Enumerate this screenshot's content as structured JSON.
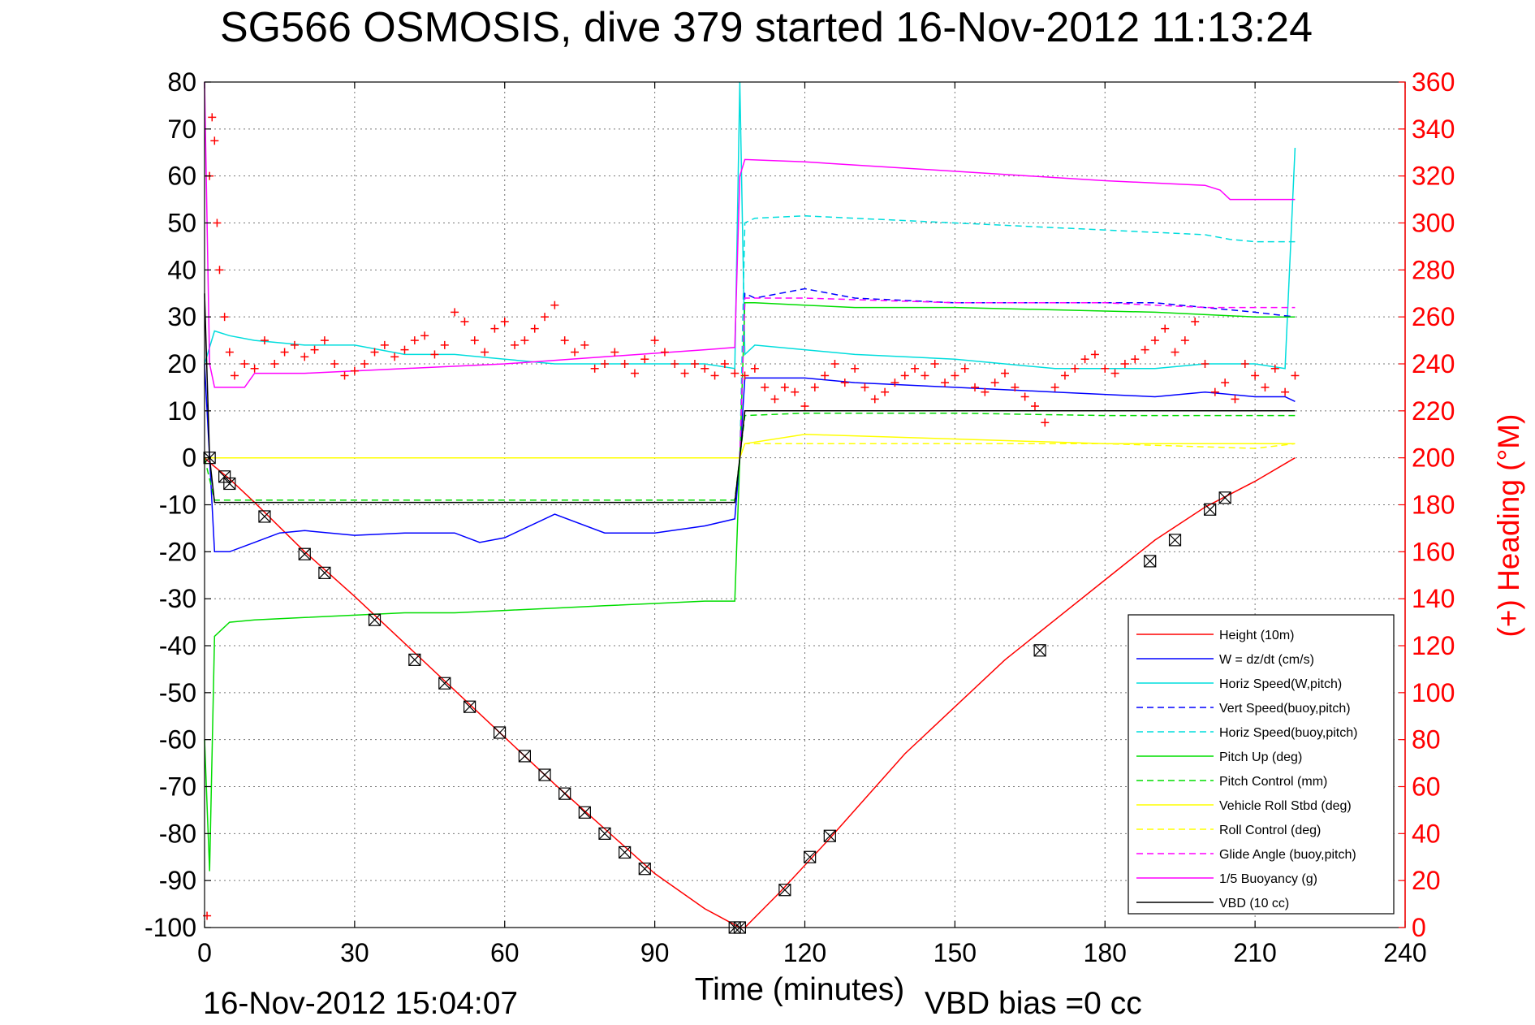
{
  "chart_data": {
    "type": "line",
    "title": "SG566 OSMOSIS, dive 379 started 16-Nov-2012 11:13:24",
    "xlabel": "Time (minutes)",
    "ylabel_right": "(+) Heading (°M)",
    "bottom_left_text": "16-Nov-2012 15:04:07",
    "bottom_text": "VBD bias =0 cc",
    "xlim": [
      0,
      240
    ],
    "ylim_left": [
      -100,
      80
    ],
    "ylim_right": [
      0,
      360
    ],
    "grid": true,
    "legend_position": "bottom-right",
    "x_ticks": [
      "0",
      "30",
      "60",
      "90",
      "120",
      "150",
      "180",
      "210",
      "240"
    ],
    "y_left_ticks": [
      "-100",
      "-90",
      "-80",
      "-70",
      "-60",
      "-50",
      "-40",
      "-30",
      "-20",
      "-10",
      "0",
      "10",
      "20",
      "30",
      "40",
      "50",
      "60",
      "70",
      "80"
    ],
    "y_right_ticks": [
      "0",
      "20",
      "40",
      "60",
      "80",
      "100",
      "120",
      "140",
      "160",
      "180",
      "200",
      "220",
      "240",
      "260",
      "280",
      "300",
      "320",
      "340",
      "360"
    ],
    "series": [
      {
        "name": "Height (10m)",
        "color": "#ff0000",
        "style": "solid",
        "x": [
          0,
          1,
          5,
          10,
          20,
          30,
          40,
          50,
          60,
          70,
          80,
          90,
          100,
          107,
          108,
          115,
          125,
          140,
          160,
          180,
          190,
          200,
          210,
          218
        ],
        "y": [
          0,
          -1,
          -4.5,
          -9.5,
          -20,
          -29.5,
          -39.5,
          -49.5,
          -59.5,
          -69.5,
          -79,
          -88.5,
          -96,
          -100,
          -100,
          -92.5,
          -81,
          -63,
          -43,
          -26,
          -17.5,
          -10.5,
          -5,
          0
        ]
      },
      {
        "name": "W = dz/dt (cm/s)",
        "color": "#0000ff",
        "style": "solid",
        "x": [
          0,
          1,
          2,
          5,
          10,
          15,
          20,
          30,
          40,
          50,
          55,
          60,
          70,
          80,
          90,
          100,
          106,
          107,
          108,
          110,
          120,
          130,
          150,
          170,
          190,
          200,
          210,
          216,
          218
        ],
        "y": [
          20,
          0,
          -20,
          -20,
          -18,
          -16,
          -15.5,
          -16.5,
          -16,
          -16,
          -18,
          -17,
          -12,
          -16,
          -16,
          -14.5,
          -13,
          0,
          17,
          17,
          17,
          16,
          15,
          14,
          13,
          14,
          13,
          13,
          12
        ]
      },
      {
        "name": "Horiz Speed(W,pitch)",
        "color": "#00dddd",
        "style": "solid",
        "x": [
          0,
          2,
          5,
          10,
          20,
          30,
          40,
          50,
          60,
          70,
          80,
          90,
          100,
          106,
          107,
          108,
          110,
          120,
          130,
          150,
          170,
          190,
          200,
          210,
          216,
          218
        ],
        "y": [
          20,
          27,
          26,
          25,
          24,
          24,
          22,
          22,
          21,
          20,
          20,
          20,
          20,
          19,
          80,
          22,
          24,
          23,
          22,
          21,
          19,
          19,
          20,
          20,
          19,
          66
        ]
      },
      {
        "name": "Vert Speed(buoy,pitch)",
        "color": "#0000ff",
        "style": "dashed",
        "x": [
          107,
          108,
          110,
          120,
          130,
          150,
          170,
          190,
          210,
          218
        ],
        "y": [
          0,
          35,
          34,
          36,
          34,
          33,
          33,
          33,
          31,
          30
        ]
      },
      {
        "name": "Horiz Speed(buoy,pitch)",
        "color": "#00dddd",
        "style": "dashed",
        "x": [
          107,
          108,
          110,
          120,
          130,
          150,
          170,
          190,
          200,
          205,
          210,
          218
        ],
        "y": [
          0,
          50,
          51,
          51.5,
          51,
          50,
          49,
          48,
          47.5,
          46.5,
          46,
          46
        ]
      },
      {
        "name": "Pitch Up (deg)",
        "color": "#00dd00",
        "style": "solid",
        "x": [
          0,
          1,
          2,
          5,
          10,
          20,
          30,
          40,
          50,
          60,
          70,
          80,
          90,
          100,
          106,
          107,
          108,
          110,
          120,
          130,
          150,
          170,
          190,
          210,
          218
        ],
        "y": [
          -60,
          -88,
          -38,
          -35,
          -34.5,
          -34,
          -33.5,
          -33,
          -33,
          -32.5,
          -32,
          -31.5,
          -31,
          -30.5,
          -30.5,
          0,
          33,
          33,
          32.5,
          32,
          32,
          31.5,
          31,
          30,
          30
        ]
      },
      {
        "name": "Pitch Control (mm)",
        "color": "#00dd00",
        "style": "dashed",
        "x": [
          0,
          2,
          10,
          40,
          80,
          106,
          107,
          108,
          120,
          150,
          180,
          218
        ],
        "y": [
          0,
          -9,
          -9,
          -9,
          -9,
          -9,
          0,
          9,
          9.5,
          9.5,
          9,
          9
        ]
      },
      {
        "name": "Vehicle Roll Stbd (deg)",
        "color": "#ffff00",
        "style": "solid",
        "x": [
          0,
          2,
          10,
          30,
          60,
          90,
          106,
          107,
          108,
          120,
          150,
          180,
          210,
          218
        ],
        "y": [
          0,
          0,
          0,
          0,
          0,
          0,
          0,
          0,
          3,
          5,
          4,
          3,
          3,
          3
        ]
      },
      {
        "name": "Roll Control (deg)",
        "color": "#ffff00",
        "style": "dashed",
        "x": [
          0,
          2,
          10,
          30,
          60,
          90,
          106,
          107,
          108,
          120,
          150,
          180,
          210,
          218
        ],
        "y": [
          0,
          0,
          0,
          0,
          0,
          0,
          0,
          0,
          3,
          3,
          3,
          3,
          2,
          3
        ]
      },
      {
        "name": "Glide Angle (buoy,pitch)",
        "color": "#ff00ff",
        "style": "dashed",
        "x": [
          107,
          108,
          120,
          150,
          180,
          200,
          210,
          218
        ],
        "y": [
          0,
          34,
          34,
          33,
          33,
          32,
          32,
          32
        ]
      },
      {
        "name": "1/5 Buoyancy (g)",
        "color": "#ff00ff",
        "style": "solid",
        "x": [
          0,
          1,
          2,
          8,
          10,
          20,
          40,
          60,
          80,
          100,
          106,
          107,
          108,
          120,
          150,
          180,
          200,
          203,
          205,
          210,
          218
        ],
        "y": [
          80,
          20,
          15,
          15,
          18,
          18,
          19,
          20,
          21.5,
          23,
          23.5,
          60,
          63.5,
          63,
          61,
          59,
          58,
          57,
          55,
          55,
          55
        ]
      },
      {
        "name": "VBD (10 cc)",
        "color": "#000000",
        "style": "solid",
        "x": [
          0,
          1,
          2,
          10,
          40,
          80,
          106,
          107,
          108,
          120,
          150,
          180,
          210,
          218
        ],
        "y": [
          35,
          0,
          -9.5,
          -9.5,
          -9.5,
          -9.5,
          -9.5,
          0,
          10,
          10,
          10,
          10,
          10,
          10
        ]
      }
    ],
    "heading_series": {
      "axis": "right",
      "color": "#ff0000",
      "marker": "+",
      "x": [
        0.5,
        1,
        1.5,
        2,
        2.5,
        3,
        4,
        5,
        6,
        8,
        10,
        12,
        14,
        16,
        18,
        20,
        22,
        24,
        26,
        28,
        30,
        32,
        34,
        36,
        38,
        40,
        42,
        44,
        46,
        48,
        50,
        52,
        54,
        56,
        58,
        60,
        62,
        64,
        66,
        68,
        70,
        72,
        74,
        76,
        78,
        80,
        82,
        84,
        86,
        88,
        90,
        92,
        94,
        96,
        98,
        100,
        102,
        104,
        106,
        108,
        110,
        112,
        114,
        116,
        118,
        120,
        122,
        124,
        126,
        128,
        130,
        132,
        134,
        136,
        138,
        140,
        142,
        144,
        146,
        148,
        150,
        152,
        154,
        156,
        158,
        160,
        162,
        164,
        166,
        168,
        170,
        172,
        174,
        176,
        178,
        180,
        182,
        184,
        186,
        188,
        190,
        192,
        194,
        196,
        198,
        200,
        202,
        204,
        206,
        208,
        210,
        212,
        214,
        216,
        218
      ],
      "y": [
        5,
        320,
        345,
        335,
        300,
        280,
        260,
        245,
        235,
        240,
        238,
        250,
        240,
        245,
        248,
        243,
        246,
        250,
        240,
        235,
        237,
        240,
        245,
        248,
        243,
        246,
        250,
        252,
        244,
        248,
        262,
        258,
        250,
        245,
        255,
        258,
        248,
        250,
        255,
        260,
        265,
        250,
        245,
        248,
        238,
        240,
        245,
        240,
        236,
        242,
        250,
        245,
        240,
        236,
        240,
        238,
        235,
        240,
        236,
        235,
        238,
        230,
        225,
        230,
        228,
        222,
        230,
        235,
        240,
        232,
        238,
        230,
        225,
        228,
        232,
        235,
        238,
        235,
        240,
        232,
        235,
        238,
        230,
        228,
        232,
        236,
        230,
        226,
        222,
        215,
        230,
        235,
        238,
        242,
        244,
        238,
        236,
        240,
        242,
        246,
        250,
        255,
        245,
        250,
        258,
        240,
        228,
        232,
        225,
        240,
        235,
        230,
        238,
        228,
        235
      ]
    },
    "depth_markers": {
      "marker": "box-x",
      "color": "#000000",
      "x": [
        1,
        4,
        5,
        12,
        20,
        24,
        34,
        42,
        48,
        53,
        59,
        64,
        68,
        72,
        76,
        80,
        84,
        88,
        106,
        107,
        116,
        121,
        125,
        167,
        189,
        194,
        201,
        204
      ],
      "y": [
        0,
        -4,
        -5.5,
        -12.5,
        -20.5,
        -24.5,
        -34.5,
        -43,
        -48,
        -53,
        -58.5,
        -63.5,
        -67.5,
        -71.5,
        -75.5,
        -80,
        -84,
        -87.5,
        -100,
        -100,
        -92,
        -85,
        -80.5,
        -41,
        -22,
        -17.5,
        -11,
        -8.5
      ]
    }
  }
}
